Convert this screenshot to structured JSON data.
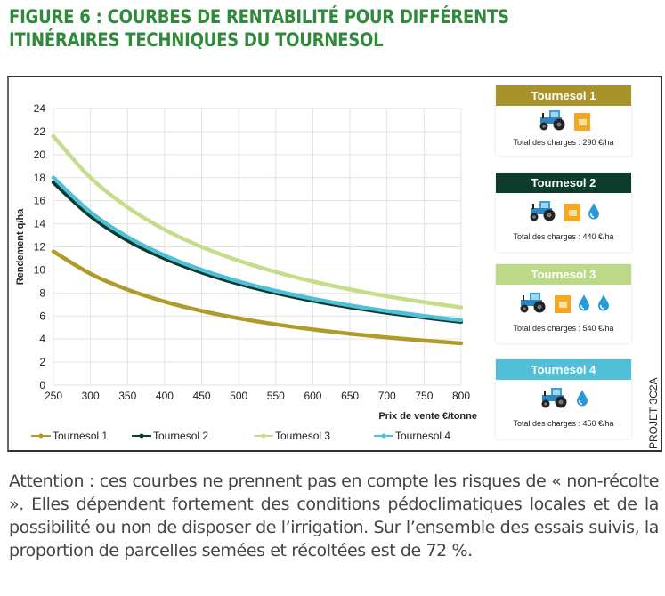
{
  "title_line1": "FIGURE 6 : COURBES DE RENTABILITÉ POUR DIFFÉRENTS",
  "title_line2": "ITINÉRAIRES TECHNIQUES DU TOURNESOL",
  "chart_data": {
    "type": "line",
    "xlabel": "Prix de vente €/tonne",
    "ylabel": "Rendement q/ha",
    "xlim": [
      250,
      800
    ],
    "ylim": [
      0,
      24
    ],
    "xticks": [
      250,
      300,
      350,
      400,
      450,
      500,
      550,
      600,
      650,
      700,
      750,
      800
    ],
    "yticks": [
      0,
      2,
      4,
      6,
      8,
      10,
      12,
      14,
      16,
      18,
      20,
      22,
      24
    ],
    "grid": true,
    "legend": "bottom",
    "x": [
      250,
      300,
      350,
      400,
      450,
      500,
      550,
      600,
      650,
      700,
      750,
      800
    ],
    "series": [
      {
        "name": "Tournesol 1",
        "color": "#b09a2a",
        "values": [
          11.6,
          9.67,
          8.29,
          7.25,
          6.44,
          5.8,
          5.27,
          4.83,
          4.46,
          4.14,
          3.87,
          3.63
        ]
      },
      {
        "name": "Tournesol 2",
        "color": "#0d3b2e",
        "values": [
          17.6,
          14.67,
          12.57,
          11.0,
          9.78,
          8.8,
          8.0,
          7.33,
          6.77,
          6.29,
          5.87,
          5.5
        ]
      },
      {
        "name": "Tournesol 3",
        "color": "#c5dd8a",
        "values": [
          21.6,
          18.0,
          15.43,
          13.5,
          12.0,
          10.8,
          9.82,
          9.0,
          8.31,
          7.71,
          7.2,
          6.75
        ]
      },
      {
        "name": "Tournesol 4",
        "color": "#4fc0d8",
        "values": [
          18.0,
          15.0,
          12.86,
          11.25,
          10.0,
          9.0,
          8.18,
          7.5,
          6.92,
          6.43,
          6.0,
          5.63
        ]
      }
    ]
  },
  "panels": [
    {
      "label": "Tournesol 1",
      "color": "#a8922a",
      "icons": [
        "tractor-icon",
        "seed-bag-icon"
      ],
      "cost": "Total des charges : 290 €/ha"
    },
    {
      "label": "Tournesol 2",
      "color": "#0d3b2e",
      "icons": [
        "tractor-icon",
        "seed-bag-icon",
        "water-drop-icon"
      ],
      "cost": "Total des charges : 440 €/ha"
    },
    {
      "label": "Tournesol 3",
      "color": "#bcd98a",
      "icons": [
        "tractor-icon",
        "seed-bag-icon",
        "water-drop-icon",
        "water-drop-icon"
      ],
      "cost": "Total des charges : 540 €/ha"
    },
    {
      "label": "Tournesol 4",
      "color": "#4fc0d8",
      "icons": [
        "tractor-icon",
        "water-drop-icon"
      ],
      "cost": "Total des charges : 450 €/ha"
    }
  ],
  "projet": "PROJET 3C2A",
  "note": "Attention : ces courbes ne prennent pas en compte les risques de « non-récolte ». Elles dépendent fortement des conditions pédoclimatiques locales et de la possibilité ou non de disposer de l’irrigation. Sur l’ensemble des essais suivis, la proportion de parcelles semées et récoltées est de 72 %."
}
